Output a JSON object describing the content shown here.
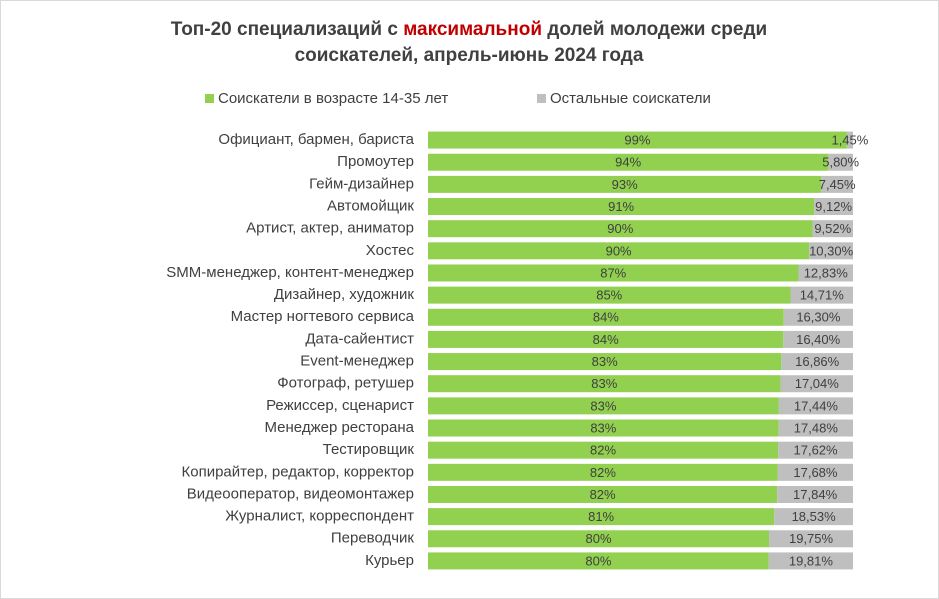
{
  "chart_data": {
    "type": "stacked_bar_horizontal",
    "title": [
      "Топ-20 специализаций с ",
      "максимальной",
      " долей молодежи среди",
      "соискателей, апрель-июнь 2024 года"
    ],
    "categories": [
      "Официант, бармен, бариста",
      "Промоутер",
      "Гейм-дизайнер",
      "Автомойщик",
      "Артист, актер, аниматор",
      "Хостес",
      "SMM-менеджер, контент-менеджер",
      "Дизайнер, художник",
      "Мастер ногтевого сервиса",
      "Дата-сайентист",
      "Event-менеджер",
      "Фотограф, ретушер",
      "Режиссер, сценарист",
      "Менеджер ресторана",
      "Тестировщик",
      "Копирайтер, редактор, корректор",
      "Видеооператор, видеомонтажер",
      "Журналист, корреспондент",
      "Переводчик",
      "Курьер"
    ],
    "series": [
      {
        "name": "Соискатели в возрасте 14-35 лет",
        "color": "#92d050",
        "values": [
          98.55,
          94.2,
          92.55,
          90.88,
          90.48,
          89.7,
          87.17,
          85.29,
          83.7,
          83.6,
          83.14,
          82.96,
          82.56,
          82.52,
          82.38,
          82.32,
          82.16,
          81.47,
          80.25,
          80.19
        ],
        "value_labels": [
          "99%",
          "94%",
          "93%",
          "91%",
          "90%",
          "90%",
          "87%",
          "85%",
          "84%",
          "84%",
          "83%",
          "83%",
          "83%",
          "83%",
          "82%",
          "82%",
          "82%",
          "81%",
          "80%",
          "80%"
        ]
      },
      {
        "name": "Остальные соискатели",
        "color": "#bfbfbf",
        "values": [
          1.45,
          5.8,
          7.45,
          9.12,
          9.52,
          10.3,
          12.83,
          14.71,
          16.3,
          16.4,
          16.86,
          17.04,
          17.44,
          17.48,
          17.62,
          17.68,
          17.84,
          18.53,
          19.75,
          19.81
        ],
        "value_labels": [
          "1,45%",
          "5,80%",
          "7,45%",
          "9,12%",
          "9,52%",
          "10,30%",
          "12,83%",
          "14,71%",
          "16,30%",
          "16,40%",
          "16,86%",
          "17,04%",
          "17,44%",
          "17,48%",
          "17,62%",
          "17,68%",
          "17,84%",
          "18,53%",
          "19,75%",
          "19,81%"
        ]
      }
    ],
    "xlim": [
      0,
      100
    ],
    "legend": "top"
  }
}
